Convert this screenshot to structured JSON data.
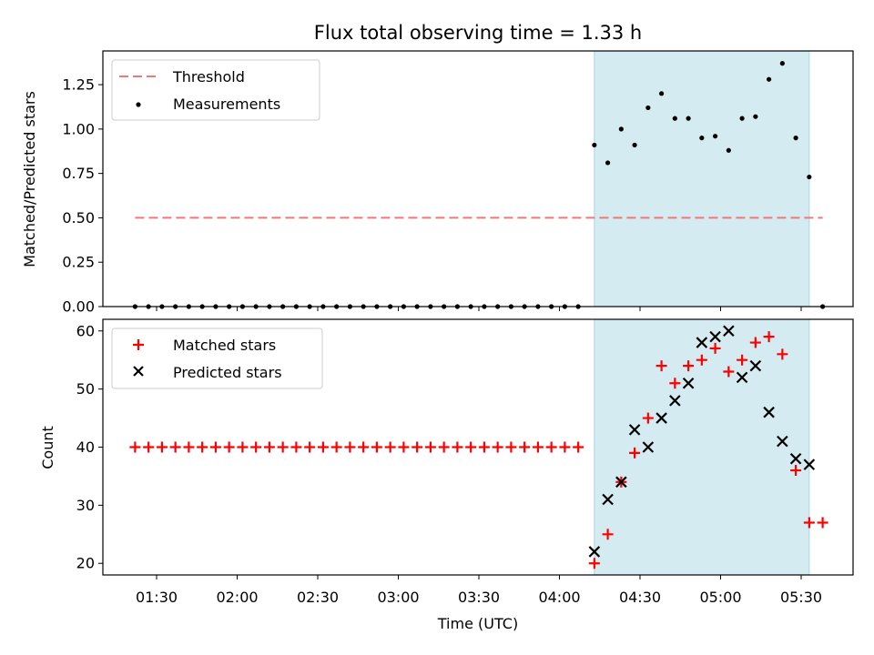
{
  "chart_data": [
    {
      "type": "scatter",
      "title": "Flux total observing time = 1.33 h",
      "ylabel": "Matched/Predicted stars",
      "ylim": [
        0,
        1.44
      ],
      "yticks": [
        0.0,
        0.25,
        0.5,
        0.75,
        1.0,
        1.25
      ],
      "ytick_labels": [
        "0.00",
        "0.25",
        "0.50",
        "0.75",
        "1.00",
        "1.25"
      ],
      "legend": "upper-left",
      "legend_entries": [
        "Threshold",
        "Measurements"
      ],
      "highlight_span": {
        "start": "04:13",
        "end": "05:33",
        "color": "#d4ebf1"
      },
      "threshold": {
        "name": "Threshold",
        "y": 0.5,
        "x_start": "01:22",
        "x_end": "05:38",
        "color": "#f07878"
      },
      "series": [
        {
          "name": "Measurements",
          "marker": "dot",
          "color": "#000000",
          "points": [
            [
              "01:22",
              0.0
            ],
            [
              "01:27",
              0.0
            ],
            [
              "01:32",
              0.0
            ],
            [
              "01:37",
              0.0
            ],
            [
              "01:42",
              0.0
            ],
            [
              "01:47",
              0.0
            ],
            [
              "01:52",
              0.0
            ],
            [
              "01:57",
              0.0
            ],
            [
              "02:02",
              0.0
            ],
            [
              "02:07",
              0.0
            ],
            [
              "02:12",
              0.0
            ],
            [
              "02:17",
              0.0
            ],
            [
              "02:22",
              0.0
            ],
            [
              "02:27",
              0.0
            ],
            [
              "02:32",
              0.0
            ],
            [
              "02:37",
              0.0
            ],
            [
              "02:42",
              0.0
            ],
            [
              "02:47",
              0.0
            ],
            [
              "02:52",
              0.0
            ],
            [
              "02:57",
              0.0
            ],
            [
              "03:02",
              0.0
            ],
            [
              "03:07",
              0.0
            ],
            [
              "03:12",
              0.0
            ],
            [
              "03:17",
              0.0
            ],
            [
              "03:22",
              0.0
            ],
            [
              "03:27",
              0.0
            ],
            [
              "03:32",
              0.0
            ],
            [
              "03:37",
              0.0
            ],
            [
              "03:42",
              0.0
            ],
            [
              "03:47",
              0.0
            ],
            [
              "03:52",
              0.0
            ],
            [
              "03:57",
              0.0
            ],
            [
              "04:02",
              0.0
            ],
            [
              "04:07",
              0.0
            ],
            [
              "04:13",
              0.91
            ],
            [
              "04:18",
              0.81
            ],
            [
              "04:23",
              1.0
            ],
            [
              "04:28",
              0.91
            ],
            [
              "04:33",
              1.12
            ],
            [
              "04:38",
              1.2
            ],
            [
              "04:43",
              1.06
            ],
            [
              "04:48",
              1.06
            ],
            [
              "04:53",
              0.95
            ],
            [
              "04:58",
              0.96
            ],
            [
              "05:03",
              0.88
            ],
            [
              "05:08",
              1.06
            ],
            [
              "05:13",
              1.07
            ],
            [
              "05:18",
              1.28
            ],
            [
              "05:23",
              1.37
            ],
            [
              "05:28",
              0.95
            ],
            [
              "05:33",
              0.73
            ],
            [
              "05:38",
              0.0
            ]
          ]
        }
      ]
    },
    {
      "type": "scatter",
      "xlabel": "Time (UTC)",
      "ylabel": "Count",
      "ylim": [
        18,
        62
      ],
      "yticks": [
        20,
        30,
        40,
        50,
        60
      ],
      "xticks": [
        "01:30",
        "02:00",
        "02:30",
        "03:00",
        "03:30",
        "04:00",
        "04:30",
        "05:00",
        "05:30"
      ],
      "legend": "upper-left",
      "legend_entries": [
        "Matched stars",
        "Predicted stars"
      ],
      "highlight_span": {
        "start": "04:13",
        "end": "05:33",
        "color": "#d4ebf1"
      },
      "series": [
        {
          "name": "Matched stars",
          "marker": "plus",
          "color": "#ff0000",
          "points": [
            [
              "01:22",
              40
            ],
            [
              "01:27",
              40
            ],
            [
              "01:32",
              40
            ],
            [
              "01:37",
              40
            ],
            [
              "01:42",
              40
            ],
            [
              "01:47",
              40
            ],
            [
              "01:52",
              40
            ],
            [
              "01:57",
              40
            ],
            [
              "02:02",
              40
            ],
            [
              "02:07",
              40
            ],
            [
              "02:12",
              40
            ],
            [
              "02:17",
              40
            ],
            [
              "02:22",
              40
            ],
            [
              "02:27",
              40
            ],
            [
              "02:32",
              40
            ],
            [
              "02:37",
              40
            ],
            [
              "02:42",
              40
            ],
            [
              "02:47",
              40
            ],
            [
              "02:52",
              40
            ],
            [
              "02:57",
              40
            ],
            [
              "03:02",
              40
            ],
            [
              "03:07",
              40
            ],
            [
              "03:12",
              40
            ],
            [
              "03:17",
              40
            ],
            [
              "03:22",
              40
            ],
            [
              "03:27",
              40
            ],
            [
              "03:32",
              40
            ],
            [
              "03:37",
              40
            ],
            [
              "03:42",
              40
            ],
            [
              "03:47",
              40
            ],
            [
              "03:52",
              40
            ],
            [
              "03:57",
              40
            ],
            [
              "04:02",
              40
            ],
            [
              "04:07",
              40
            ],
            [
              "04:13",
              20
            ],
            [
              "04:18",
              25
            ],
            [
              "04:23",
              34
            ],
            [
              "04:28",
              39
            ],
            [
              "04:33",
              45
            ],
            [
              "04:38",
              54
            ],
            [
              "04:43",
              51
            ],
            [
              "04:48",
              54
            ],
            [
              "04:53",
              55
            ],
            [
              "04:58",
              57
            ],
            [
              "05:03",
              53
            ],
            [
              "05:08",
              55
            ],
            [
              "05:13",
              58
            ],
            [
              "05:18",
              59
            ],
            [
              "05:23",
              56
            ],
            [
              "05:28",
              36
            ],
            [
              "05:33",
              27
            ],
            [
              "05:38",
              27
            ]
          ]
        },
        {
          "name": "Predicted stars",
          "marker": "x",
          "color": "#000000",
          "points": [
            [
              "04:13",
              22
            ],
            [
              "04:18",
              31
            ],
            [
              "04:23",
              34
            ],
            [
              "04:28",
              43
            ],
            [
              "04:33",
              40
            ],
            [
              "04:38",
              45
            ],
            [
              "04:43",
              48
            ],
            [
              "04:48",
              51
            ],
            [
              "04:53",
              58
            ],
            [
              "04:58",
              59
            ],
            [
              "05:03",
              60
            ],
            [
              "05:08",
              52
            ],
            [
              "05:13",
              54
            ],
            [
              "05:18",
              46
            ],
            [
              "05:23",
              41
            ],
            [
              "05:28",
              38
            ],
            [
              "05:33",
              37
            ]
          ]
        }
      ]
    }
  ]
}
